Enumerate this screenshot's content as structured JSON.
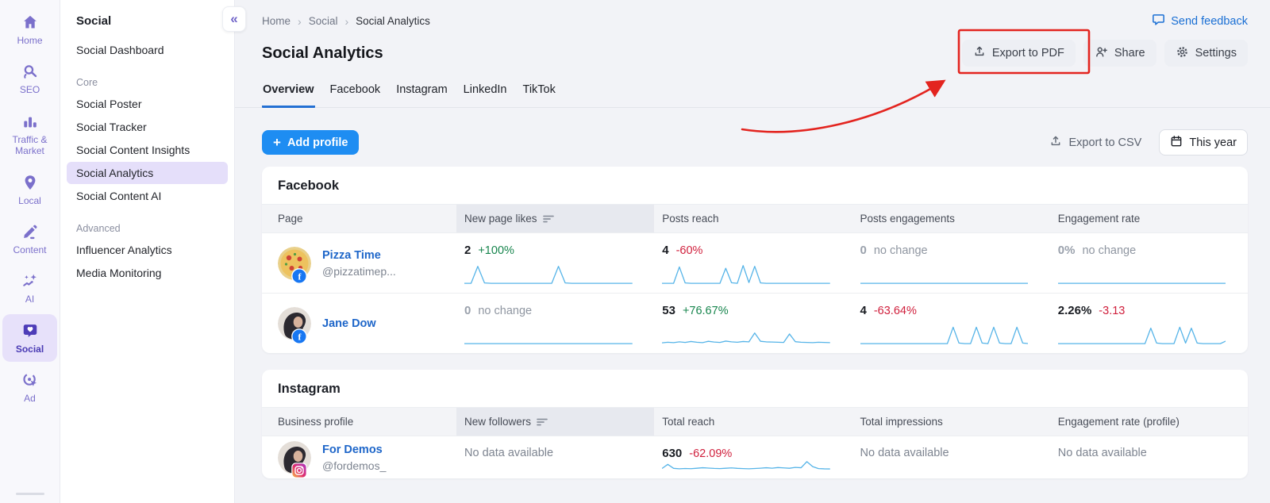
{
  "rail": {
    "items": [
      {
        "label": "Home",
        "icon": "home-icon",
        "selected": false
      },
      {
        "label": "SEO",
        "icon": "seo-icon",
        "selected": false
      },
      {
        "label": "Traffic & Market",
        "icon": "traffic-icon",
        "selected": false
      },
      {
        "label": "Local",
        "icon": "local-icon",
        "selected": false
      },
      {
        "label": "Content",
        "icon": "content-icon",
        "selected": false
      },
      {
        "label": "AI",
        "icon": "ai-icon",
        "selected": false
      },
      {
        "label": "Social",
        "icon": "social-icon",
        "selected": true
      },
      {
        "label": "Ad",
        "icon": "ad-icon",
        "selected": false
      }
    ]
  },
  "sidebar": {
    "title": "Social",
    "dashboard_item": "Social Dashboard",
    "sections": [
      {
        "label": "Core",
        "items": [
          {
            "label": "Social Poster",
            "selected": false
          },
          {
            "label": "Social Tracker",
            "selected": false
          },
          {
            "label": "Social Content Insights",
            "selected": false
          },
          {
            "label": "Social Analytics",
            "selected": true
          },
          {
            "label": "Social Content AI",
            "selected": false
          }
        ]
      },
      {
        "label": "Advanced",
        "items": [
          {
            "label": "Influencer Analytics",
            "selected": false
          },
          {
            "label": "Media Monitoring",
            "selected": false
          }
        ]
      }
    ]
  },
  "header": {
    "breadcrumb": [
      "Home",
      "Social",
      "Social Analytics"
    ],
    "title": "Social Analytics",
    "send_feedback": "Send feedback",
    "export_pdf": "Export to PDF",
    "share": "Share",
    "settings": "Settings",
    "tabs": [
      {
        "label": "Overview",
        "active": true
      },
      {
        "label": "Facebook",
        "active": false
      },
      {
        "label": "Instagram",
        "active": false
      },
      {
        "label": "LinkedIn",
        "active": false
      },
      {
        "label": "TikTok",
        "active": false
      }
    ]
  },
  "toolbar": {
    "add_profile": "Add profile",
    "export_csv": "Export to CSV",
    "date_range": "This year"
  },
  "colors": {
    "accent_purple": "#7b70cb",
    "link_blue": "#1e66c9",
    "button_blue": "#1e8df2",
    "positive": "#17854d",
    "negative": "#d01f3c",
    "sparkline": "#56b4e8",
    "annotation_red": "#e3241f"
  },
  "annotation": {
    "type": "red-box-and-arrow",
    "target": "export-pdf-button"
  },
  "facebook_card": {
    "title": "Facebook",
    "columns": [
      "Page",
      "New page likes",
      "Posts reach",
      "Posts engagements",
      "Engagement rate"
    ],
    "sorted_col": 1,
    "row_class": "fb-row-h",
    "rows": [
      {
        "name": "Pizza Time",
        "handle": "@pizzatimep...",
        "avatar": "pizza-avatar",
        "badge": "facebook-badge",
        "metrics": [
          {
            "value": "2",
            "muted": false,
            "change": "+100%",
            "tone": "up",
            "spark": [
              0,
              0,
              88,
              2,
              0,
              0,
              0,
              0,
              0,
              0,
              0,
              0,
              0,
              0,
              88,
              2,
              0,
              0,
              0,
              0,
              0,
              0,
              0,
              0,
              0,
              0
            ]
          },
          {
            "value": "4",
            "muted": false,
            "change": "-60%",
            "tone": "down",
            "spark": [
              0,
              0,
              0,
              85,
              2,
              0,
              0,
              0,
              0,
              0,
              0,
              78,
              3,
              0,
              92,
              4,
              88,
              2,
              0,
              0,
              0,
              0,
              0,
              0,
              0,
              0,
              0,
              0,
              0,
              0
            ]
          },
          {
            "value": "0",
            "muted": true,
            "change": "no change",
            "tone": "none",
            "spark": [
              0,
              0
            ]
          },
          {
            "value": "0%",
            "muted": true,
            "change": "no change",
            "tone": "none",
            "spark": [
              0,
              0
            ]
          }
        ]
      },
      {
        "name": "Jane Dow",
        "handle": "",
        "avatar": "woman-avatar",
        "badge": "facebook-badge",
        "metrics": [
          {
            "value": "0",
            "muted": true,
            "change": "no change",
            "tone": "none",
            "spark": [
              0,
              0
            ]
          },
          {
            "value": "53",
            "muted": false,
            "change": "+76.67%",
            "tone": "up",
            "spark": [
              4,
              7,
              5,
              9,
              6,
              11,
              7,
              5,
              12,
              8,
              6,
              13,
              9,
              7,
              11,
              9,
              55,
              12,
              9,
              8,
              7,
              6,
              50,
              10,
              7,
              6,
              5,
              7,
              6,
              5
            ]
          },
          {
            "value": "4",
            "muted": false,
            "change": "-63.64%",
            "tone": "down",
            "spark": [
              0,
              0,
              0,
              0,
              0,
              0,
              0,
              0,
              0,
              0,
              0,
              0,
              0,
              0,
              0,
              0,
              85,
              3,
              0,
              0,
              85,
              3,
              0,
              85,
              3,
              0,
              0,
              85,
              3,
              0
            ]
          },
          {
            "value": "2.26%",
            "muted": false,
            "change": "-3.13",
            "tone": "down",
            "spark": [
              0,
              0,
              0,
              0,
              0,
              0,
              0,
              0,
              0,
              0,
              0,
              0,
              0,
              0,
              0,
              0,
              80,
              3,
              0,
              0,
              0,
              85,
              3,
              80,
              3,
              0,
              0,
              0,
              0,
              14
            ]
          }
        ]
      }
    ]
  },
  "instagram_card": {
    "title": "Instagram",
    "columns": [
      "Business profile",
      "New followers",
      "Total reach",
      "Total impressions",
      "Engagement rate (profile)"
    ],
    "sorted_col": 1,
    "row_class": "ig-row-h",
    "rows": [
      {
        "name": "For Demos",
        "handle": "@fordemos_",
        "avatar": "woman-avatar",
        "badge": "instagram-badge",
        "metrics": [
          {
            "no_data": "No data available"
          },
          {
            "value": "630",
            "muted": false,
            "change": "-62.09%",
            "tone": "down",
            "spark": [
              10,
              58,
              12,
              7,
              10,
              8,
              13,
              19,
              15,
              11,
              9,
              13,
              17,
              12,
              9,
              7,
              10,
              14,
              19,
              14,
              21,
              17,
              13,
              23,
              19,
              90,
              32,
              9,
              6,
              5
            ]
          },
          {
            "no_data": "No data available"
          },
          {
            "no_data": "No data available"
          }
        ]
      }
    ]
  }
}
